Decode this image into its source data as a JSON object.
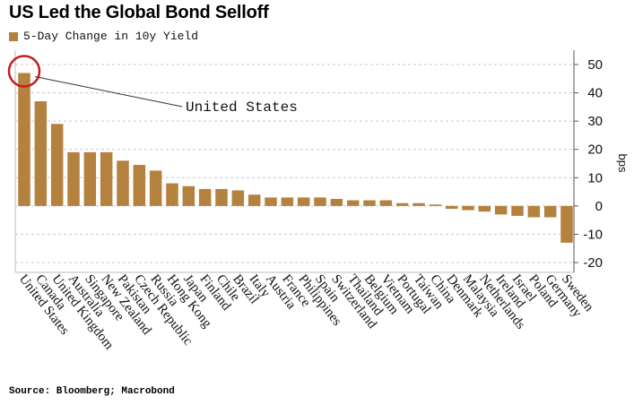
{
  "chart_data": {
    "type": "bar",
    "title": "US Led the Global Bond Selloff",
    "legend": "5-Day Change in 10y Yield",
    "ylabel": "bps",
    "ylim": [
      -22,
      53
    ],
    "yticks": [
      50,
      40,
      30,
      20,
      10,
      0,
      -10,
      -20
    ],
    "grid": true,
    "annotation": "United States",
    "source": "Source: Bloomberg; Macrobond",
    "categories": [
      "United States",
      "Canada",
      "United Kingdom",
      "Australia",
      "Singapore",
      "New Zealand",
      "Pakistan",
      "Czech Republic",
      "Russia",
      "Hong Kong",
      "Japan",
      "Finland",
      "Chile",
      "Brazil",
      "Italy",
      "Austria",
      "France",
      "Philippines",
      "Spain",
      "Switzerland",
      "Thailand",
      "Belgium",
      "Vietnam",
      "Portugal",
      "Taiwan",
      "China",
      "Denmark",
      "Malaysia",
      "Netherlands",
      "Ireland",
      "Israel",
      "Poland",
      "Germany",
      "Sweden"
    ],
    "values": [
      47,
      37,
      29,
      19,
      19,
      19,
      16,
      14.5,
      12.5,
      8,
      7,
      6,
      6,
      5.5,
      4,
      3,
      3,
      3,
      3,
      2.5,
      2,
      2,
      2,
      1,
      1,
      0.5,
      -1,
      -1.5,
      -2,
      -3,
      -3.5,
      -4,
      -4,
      -13
    ],
    "colors": {
      "bar": "#b5813f",
      "grid": "#c8c8c8",
      "annotation_circle": "#c41c1c",
      "leader_line": "#333333"
    }
  }
}
